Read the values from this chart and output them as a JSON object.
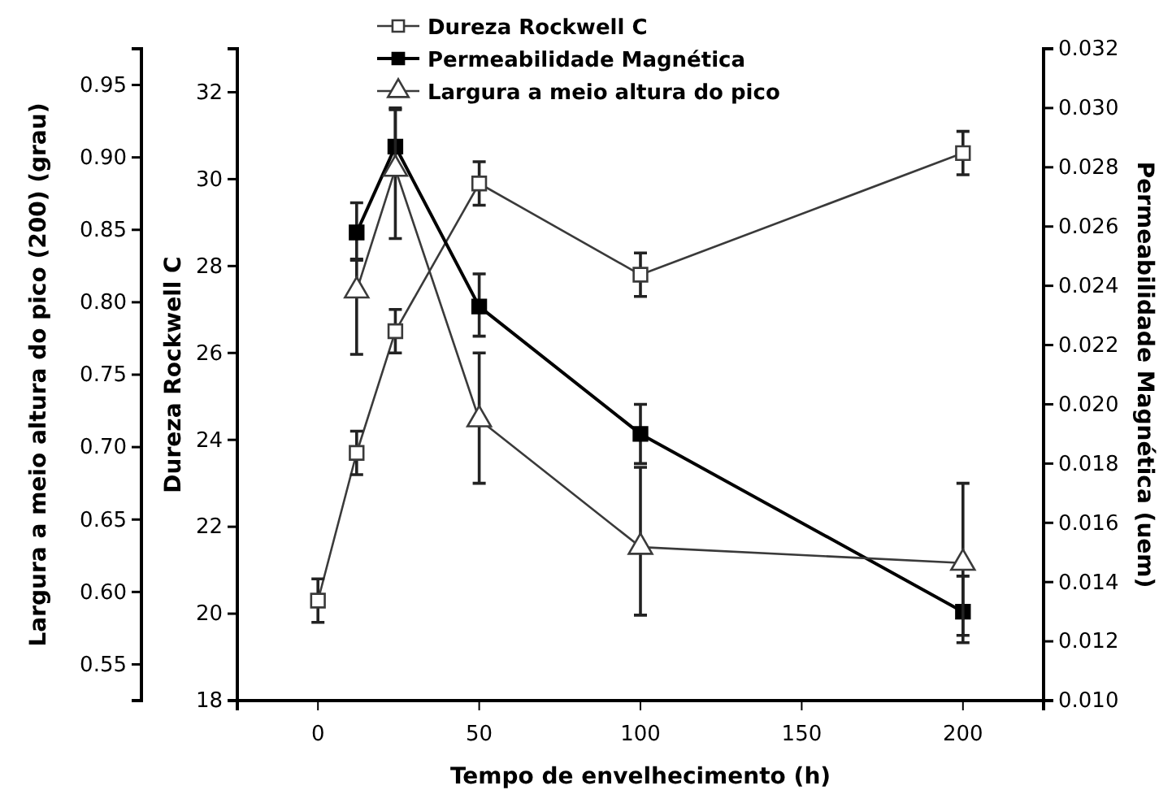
{
  "chart_data": {
    "type": "line",
    "xlabel": "Tempo de envelhecimento (h)",
    "ylabel": "Dureza Rockwell C",
    "y2label": "Permeabilidade Magnética (uem)",
    "y3label": "Largura a meio altura do pico (200) (grau)",
    "xlim": [
      -25,
      225
    ],
    "xticks": [
      0,
      50,
      100,
      150,
      200
    ],
    "ylim": [
      18,
      33
    ],
    "yticks": [
      18,
      20,
      22,
      24,
      26,
      28,
      30,
      32
    ],
    "y2lim": [
      0.01,
      0.032
    ],
    "y2ticks": [
      {
        "value": 0.01,
        "label": "0.010"
      },
      {
        "value": 0.012,
        "label": "0.012"
      },
      {
        "value": 0.014,
        "label": "0.014"
      },
      {
        "value": 0.016,
        "label": "0.016"
      },
      {
        "value": 0.018,
        "label": "0.018"
      },
      {
        "value": 0.02,
        "label": "0.020"
      },
      {
        "value": 0.022,
        "label": "0.022"
      },
      {
        "value": 0.024,
        "label": "0.024"
      },
      {
        "value": 0.026,
        "label": "0.026"
      },
      {
        "value": 0.028,
        "label": "0.028"
      },
      {
        "value": 0.03,
        "label": "0.030"
      },
      {
        "value": 0.032,
        "label": "0.032"
      }
    ],
    "y3lim": [
      0.525,
      0.975
    ],
    "y3ticks": [
      {
        "value": 0.55,
        "label": "0.55"
      },
      {
        "value": 0.6,
        "label": "0.60"
      },
      {
        "value": 0.65,
        "label": "0.65"
      },
      {
        "value": 0.7,
        "label": "0.70"
      },
      {
        "value": 0.75,
        "label": "0.75"
      },
      {
        "value": 0.8,
        "label": "0.80"
      },
      {
        "value": 0.85,
        "label": "0.85"
      },
      {
        "value": 0.9,
        "label": "0.90"
      },
      {
        "value": 0.95,
        "label": "0.95"
      }
    ],
    "legend": "top",
    "grid": false,
    "series": [
      {
        "name": "Dureza Rockwell C",
        "color": "#3a3a3a",
        "marker": "square",
        "x": [
          0,
          12,
          24,
          50,
          100,
          200
        ],
        "values": [
          20.3,
          23.7,
          26.5,
          29.9,
          27.8,
          30.6
        ],
        "errors": [
          0.5,
          0.5,
          0.5,
          0.5,
          0.5,
          0.5
        ]
      },
      {
        "name": "Permeabilidade Magnética",
        "color": "#000000",
        "marker": "square",
        "axis": "y2",
        "x": [
          12,
          24,
          50,
          100,
          200
        ],
        "values": [
          0.0258,
          0.0287,
          0.0233,
          0.019,
          0.013
        ],
        "errors": [
          [
            0.0249,
            0.0268
          ],
          [
            0.028,
            0.03
          ],
          [
            0.0223,
            0.0244
          ],
          [
            0.018,
            0.02
          ],
          [
            0.0122,
            0.0142
          ]
        ]
      },
      {
        "name": "Largura a meio altura do pico",
        "color": "#3a3a3a",
        "marker": "triangle",
        "axis": "y3",
        "x": [
          12,
          24,
          50,
          100,
          200
        ],
        "values": [
          0.808,
          0.892,
          0.719,
          0.631,
          0.62
        ],
        "errors": [
          [
            0.764,
            0.829
          ],
          [
            0.844,
            0.933
          ],
          [
            0.675,
            0.765
          ],
          [
            0.584,
            0.686
          ],
          [
            0.565,
            0.675
          ]
        ]
      }
    ]
  }
}
